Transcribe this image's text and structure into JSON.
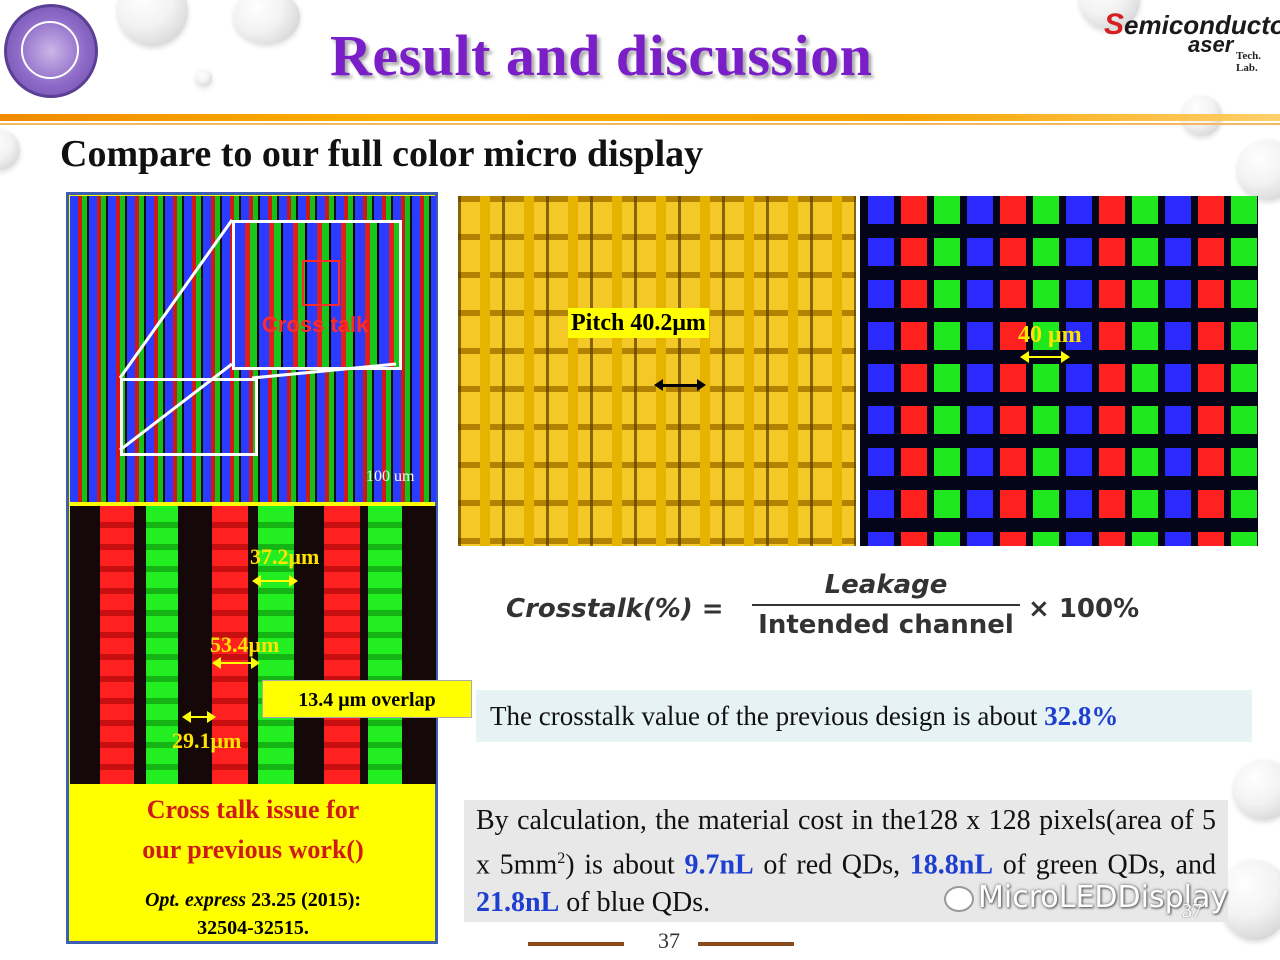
{
  "header": {
    "title": "Result and discussion",
    "logo_line1_prefix": "S",
    "logo_line1": "emiconductor",
    "logo_line2": "aser",
    "logo_line3": "Tech. Lab."
  },
  "subtitle": "Compare to our full color micro display",
  "left_panel": {
    "inset_label": "Cross talk",
    "scale_bar": "100 um",
    "measure_1": "37.2μm",
    "measure_2": "53.4μm",
    "measure_3": "29.1μm",
    "overlap_label": "13.4 μm overlap",
    "issue_line1": "Cross talk issue for",
    "issue_line2": "our previous work()",
    "reference_journal": "Opt. express",
    "reference_detail": "23.25 (2015):",
    "reference_pages": "32504-32515."
  },
  "micrographs": {
    "pitch_label": "Pitch 40.2μm",
    "rgb_measure": "40 μm"
  },
  "formula": {
    "lhs": "Crosstalk(%) =",
    "numerator": "Leakage",
    "denominator": "Intended channel",
    "rhs": "× 100%"
  },
  "crosstalk_statement": {
    "text": "The crosstalk value of the previous design is about ",
    "value": "32.8%"
  },
  "calculation": {
    "part1": "By calculation, the material cost in the128 x 128 pixels(area of 5 x 5mm",
    "superscript": "2",
    "part2": ") is about ",
    "red_value": "9.7nL",
    "part3": " of red QDs, ",
    "green_value": "18.8nL",
    "part4": " of green QDs, and ",
    "blue_value": "21.8nL",
    "part5": " of blue QDs."
  },
  "watermark": {
    "account": "MicroLEDDisplay"
  },
  "footer": {
    "page_number": "37",
    "page_number_corner": "37"
  },
  "colors": {
    "title": "#7a1fc7",
    "highlight": "#1f3fd0",
    "issue_text": "#d01a1a",
    "measure_text": "#ffe200"
  }
}
